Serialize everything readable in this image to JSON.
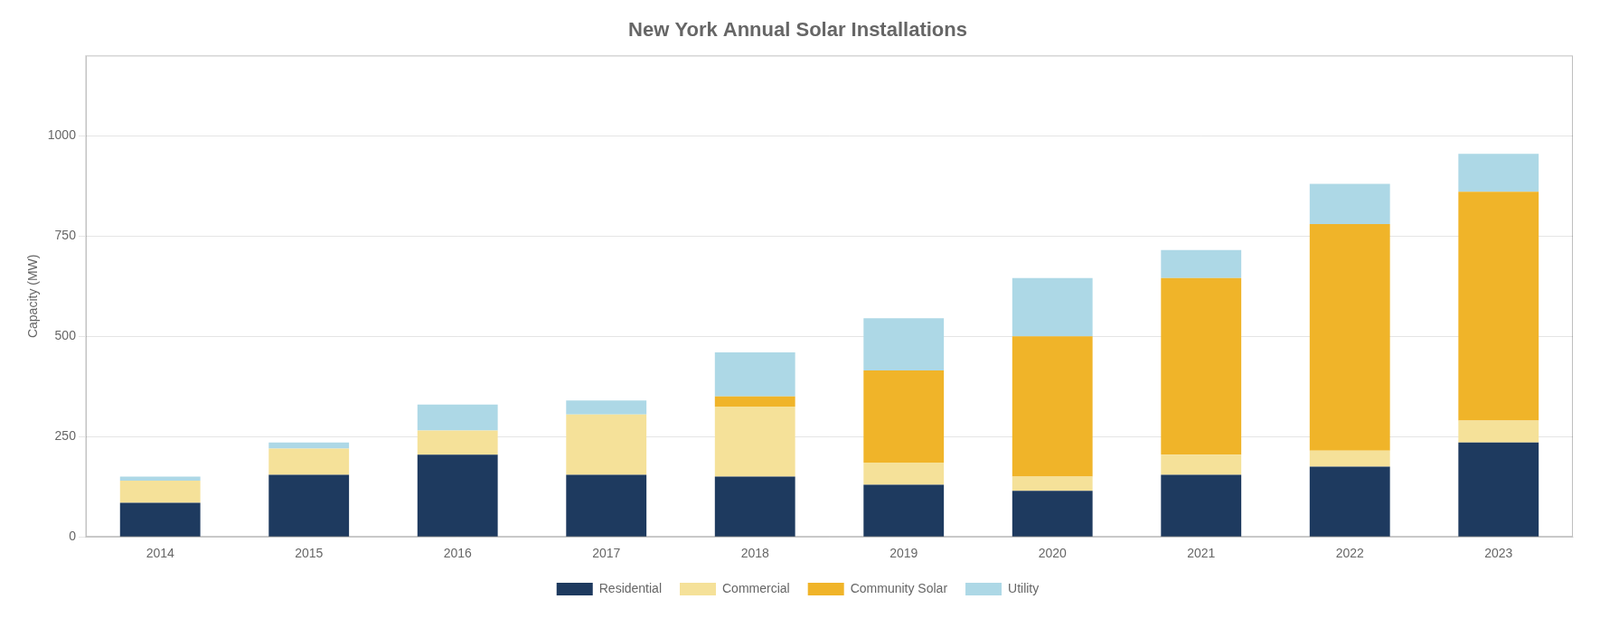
{
  "chart_data": {
    "type": "bar",
    "title": "New York Annual Solar Installations",
    "ylabel": "Capacity (MW)",
    "categories": [
      "2014",
      "2015",
      "2016",
      "2017",
      "2018",
      "2019",
      "2020",
      "2021",
      "2022",
      "2023"
    ],
    "series": [
      {
        "name": "Residential",
        "color": "#1e3a5f",
        "values": [
          85,
          155,
          205,
          155,
          150,
          130,
          115,
          155,
          175,
          235
        ]
      },
      {
        "name": "Commercial",
        "color": "#f5e199",
        "values": [
          55,
          65,
          60,
          150,
          175,
          55,
          35,
          50,
          40,
          55
        ]
      },
      {
        "name": "Community Solar",
        "color": "#f0b429",
        "values": [
          0,
          0,
          0,
          0,
          25,
          230,
          350,
          440,
          565,
          570
        ]
      },
      {
        "name": "Utility",
        "color": "#add8e6",
        "values": [
          10,
          15,
          65,
          35,
          110,
          130,
          145,
          70,
          100,
          95
        ]
      }
    ],
    "stacked": true,
    "ylim": [
      0,
      1200
    ],
    "yticks": [
      0,
      250,
      500,
      750,
      1000
    ],
    "grid": true,
    "legend": "bottom"
  }
}
